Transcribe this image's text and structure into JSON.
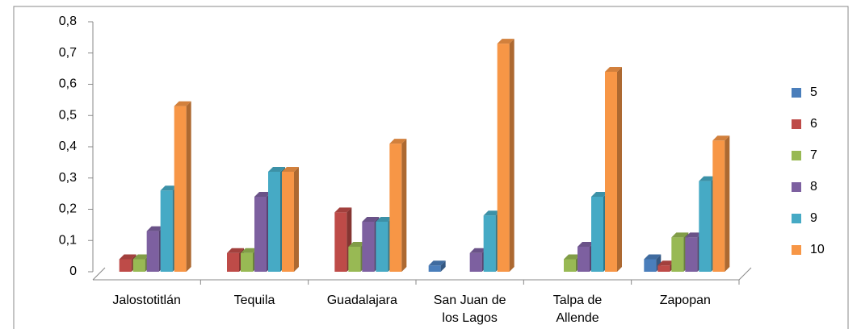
{
  "chart_data": {
    "type": "bar3d",
    "categories": [
      "Jalostotitlán",
      "Tequila",
      "Guadalajara",
      "San Juan de los Lagos",
      "Talpa de Allende",
      "Zapopan"
    ],
    "series": [
      {
        "name": "5",
        "color": "#4a7ebb",
        "values": [
          0,
          0,
          0,
          0.02,
          0,
          0.04
        ]
      },
      {
        "name": "6",
        "color": "#be4b48",
        "values": [
          0.04,
          0.06,
          0.19,
          0,
          0,
          0.02
        ]
      },
      {
        "name": "7",
        "color": "#98b954",
        "values": [
          0.04,
          0.06,
          0.08,
          0,
          0.04,
          0.11
        ]
      },
      {
        "name": "8",
        "color": "#7d60a0",
        "values": [
          0.13,
          0.24,
          0.16,
          0.06,
          0.08,
          0.11
        ]
      },
      {
        "name": "9",
        "color": "#46aac5",
        "values": [
          0.26,
          0.32,
          0.16,
          0.18,
          0.24,
          0.29
        ]
      },
      {
        "name": "10",
        "color": "#f79646",
        "values": [
          0.53,
          0.32,
          0.41,
          0.73,
          0.64,
          0.42
        ]
      }
    ],
    "ylim": [
      0,
      0.8
    ],
    "yticks": [
      0,
      {
        "value": 0.1,
        "label": "0,1"
      },
      {
        "value": 0.2,
        "label": "0,2"
      },
      {
        "value": 0.3,
        "label": "0,3"
      },
      {
        "value": 0.4,
        "label": "0,4"
      },
      {
        "value": 0.5,
        "label": "0,5"
      },
      {
        "value": 0.6,
        "label": "0,6"
      },
      {
        "value": 0.7,
        "label": "0,7"
      },
      {
        "value": 0.8,
        "label": "0,8"
      }
    ],
    "legend": "right"
  }
}
